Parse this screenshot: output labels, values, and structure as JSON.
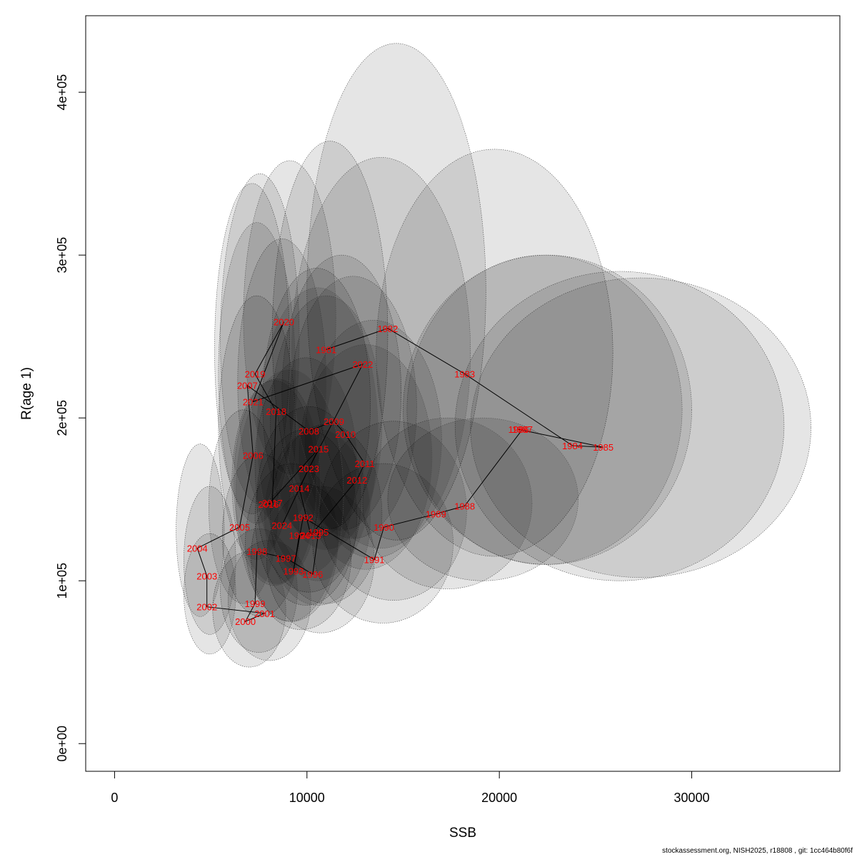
{
  "chart_data": {
    "type": "scatter",
    "xlabel": "SSB",
    "ylabel": "R(age 1)",
    "xlim": [
      -1500,
      37700
    ],
    "ylim": [
      -17000,
      447000
    ],
    "x_ticks": [
      {
        "value": 0,
        "label": "0"
      },
      {
        "value": 10000,
        "label": "10000"
      },
      {
        "value": 20000,
        "label": "20000"
      },
      {
        "value": 30000,
        "label": "30000"
      }
    ],
    "y_ticks": [
      {
        "value": 0,
        "label": "0e+00"
      },
      {
        "value": 100000,
        "label": "1e+05"
      },
      {
        "value": 200000,
        "label": "2e+05"
      },
      {
        "value": 300000,
        "label": "3e+05"
      },
      {
        "value": 400000,
        "label": "4e+05"
      }
    ],
    "points": [
      {
        "year": "1981",
        "ssb": 11000,
        "rec": 242000,
        "ssb_lo": 8200,
        "ssb_hi": 14200,
        "rec_lo": 132000,
        "rec_hi": 370000
      },
      {
        "year": "1982",
        "ssb": 14200,
        "rec": 255000,
        "ssb_lo": 10000,
        "ssb_hi": 19300,
        "rec_lo": 125000,
        "rec_hi": 430000
      },
      {
        "year": "1983",
        "ssb": 18200,
        "rec": 227000,
        "ssb_lo": 13600,
        "ssb_hi": 25900,
        "rec_lo": 115000,
        "rec_hi": 365000
      },
      {
        "year": "1984",
        "ssb": 23800,
        "rec": 183000,
        "ssb_lo": 17700,
        "ssb_hi": 34800,
        "rec_lo": 100000,
        "rec_hi": 290000
      },
      {
        "year": "1985",
        "ssb": 25400,
        "rec": 182000,
        "ssb_lo": 18500,
        "ssb_hi": 36200,
        "rec_lo": 102000,
        "rec_hi": 286000
      },
      {
        "year": "1986",
        "ssb": 21000,
        "rec": 193000,
        "ssb_lo": 15000,
        "ssb_hi": 30000,
        "rec_lo": 110000,
        "rec_hi": 300000
      },
      {
        "year": "1987",
        "ssb": 21200,
        "rec": 193000,
        "ssb_lo": 15200,
        "ssb_hi": 29500,
        "rec_lo": 110000,
        "rec_hi": 300000
      },
      {
        "year": "1988",
        "ssb": 18200,
        "rec": 146000,
        "ssb_lo": 14200,
        "ssb_hi": 24100,
        "rec_lo": 100000,
        "rec_hi": 200000
      },
      {
        "year": "1989",
        "ssb": 16700,
        "rec": 141000,
        "ssb_lo": 12900,
        "ssb_hi": 21700,
        "rec_lo": 95000,
        "rec_hi": 200000
      },
      {
        "year": "1990",
        "ssb": 14000,
        "rec": 133000,
        "ssb_lo": 10700,
        "ssb_hi": 18300,
        "rec_lo": 88000,
        "rec_hi": 198000
      },
      {
        "year": "1991",
        "ssb": 13500,
        "rec": 113000,
        "ssb_lo": 10300,
        "ssb_hi": 17600,
        "rec_lo": 74000,
        "rec_hi": 172000
      },
      {
        "year": "1992",
        "ssb": 9800,
        "rec": 139000,
        "ssb_lo": 7400,
        "ssb_hi": 12800,
        "rec_lo": 93000,
        "rec_hi": 207000
      },
      {
        "year": "1993",
        "ssb": 9300,
        "rec": 106000,
        "ssb_lo": 7100,
        "ssb_hi": 12300,
        "rec_lo": 70000,
        "rec_hi": 160000
      },
      {
        "year": "1994",
        "ssb": 9600,
        "rec": 128000,
        "ssb_lo": 7300,
        "ssb_hi": 12600,
        "rec_lo": 85000,
        "rec_hi": 193000
      },
      {
        "year": "1995",
        "ssb": 10600,
        "rec": 130000,
        "ssb_lo": 8100,
        "ssb_hi": 13900,
        "rec_lo": 86000,
        "rec_hi": 196000
      },
      {
        "year": "1996",
        "ssb": 10300,
        "rec": 104000,
        "ssb_lo": 7900,
        "ssb_hi": 13500,
        "rec_lo": 68000,
        "rec_hi": 158000
      },
      {
        "year": "1997",
        "ssb": 8900,
        "rec": 114000,
        "ssb_lo": 6800,
        "ssb_hi": 11600,
        "rec_lo": 75000,
        "rec_hi": 172000
      },
      {
        "year": "1998",
        "ssb": 7400,
        "rec": 118000,
        "ssb_lo": 5600,
        "ssb_hi": 9600,
        "rec_lo": 78000,
        "rec_hi": 178000
      },
      {
        "year": "1999",
        "ssb": 7300,
        "rec": 86000,
        "ssb_lo": 5500,
        "ssb_hi": 9500,
        "rec_lo": 56000,
        "rec_hi": 132000
      },
      {
        "year": "2000",
        "ssb": 6800,
        "rec": 75000,
        "ssb_lo": 5100,
        "ssb_hi": 8900,
        "rec_lo": 47000,
        "rec_hi": 118000
      },
      {
        "year": "2001",
        "ssb": 7800,
        "rec": 80000,
        "ssb_lo": 5900,
        "ssb_hi": 10200,
        "rec_lo": 51000,
        "rec_hi": 125000
      },
      {
        "year": "2002",
        "ssb": 4800,
        "rec": 84000,
        "ssb_lo": 3600,
        "ssb_hi": 6300,
        "rec_lo": 55000,
        "rec_hi": 129000
      },
      {
        "year": "2003",
        "ssb": 4800,
        "rec": 103000,
        "ssb_lo": 3600,
        "ssb_hi": 6300,
        "rec_lo": 67000,
        "rec_hi": 158000
      },
      {
        "year": "2004",
        "ssb": 4300,
        "rec": 120000,
        "ssb_lo": 3200,
        "ssb_hi": 5700,
        "rec_lo": 78000,
        "rec_hi": 184000
      },
      {
        "year": "2005",
        "ssb": 6500,
        "rec": 133000,
        "ssb_lo": 4900,
        "ssb_hi": 8500,
        "rec_lo": 86000,
        "rec_hi": 205000
      },
      {
        "year": "2006",
        "ssb": 7200,
        "rec": 177000,
        "ssb_lo": 5400,
        "ssb_hi": 9400,
        "rec_lo": 113000,
        "rec_hi": 275000
      },
      {
        "year": "2007",
        "ssb": 6900,
        "rec": 220000,
        "ssb_lo": 5200,
        "ssb_hi": 9100,
        "rec_lo": 141000,
        "rec_hi": 344000
      },
      {
        "year": "2008",
        "ssb": 10100,
        "rec": 192000,
        "ssb_lo": 7700,
        "ssb_hi": 13300,
        "rec_lo": 126000,
        "rec_hi": 292000
      },
      {
        "year": "2009",
        "ssb": 11400,
        "rec": 198000,
        "ssb_lo": 8700,
        "ssb_hi": 14900,
        "rec_lo": 131000,
        "rec_hi": 300000
      },
      {
        "year": "2010",
        "ssb": 12000,
        "rec": 190000,
        "ssb_lo": 9100,
        "ssb_hi": 15700,
        "rec_lo": 126000,
        "rec_hi": 287000
      },
      {
        "year": "2011",
        "ssb": 13000,
        "rec": 172000,
        "ssb_lo": 9900,
        "ssb_hi": 17000,
        "rec_lo": 114000,
        "rec_hi": 260000
      },
      {
        "year": "2012",
        "ssb": 12600,
        "rec": 162000,
        "ssb_lo": 9600,
        "ssb_hi": 16500,
        "rec_lo": 107000,
        "rec_hi": 245000
      },
      {
        "year": "2013",
        "ssb": 10200,
        "rec": 128000,
        "ssb_lo": 7800,
        "ssb_hi": 13300,
        "rec_lo": 85000,
        "rec_hi": 193000
      },
      {
        "year": "2014",
        "ssb": 9600,
        "rec": 157000,
        "ssb_lo": 7300,
        "ssb_hi": 12600,
        "rec_lo": 104000,
        "rec_hi": 237000
      },
      {
        "year": "2015",
        "ssb": 10600,
        "rec": 181000,
        "ssb_lo": 8100,
        "ssb_hi": 13900,
        "rec_lo": 119000,
        "rec_hi": 275000
      },
      {
        "year": "2016",
        "ssb": 8000,
        "rec": 147000,
        "ssb_lo": 6100,
        "ssb_hi": 10500,
        "rec_lo": 97000,
        "rec_hi": 223000
      },
      {
        "year": "2017",
        "ssb": 8200,
        "rec": 148000,
        "ssb_lo": 6200,
        "ssb_hi": 10700,
        "rec_lo": 98000,
        "rec_hi": 224000
      },
      {
        "year": "2018",
        "ssb": 8400,
        "rec": 204000,
        "ssb_lo": 6400,
        "ssb_hi": 11000,
        "rec_lo": 134000,
        "rec_hi": 310000
      },
      {
        "year": "2019",
        "ssb": 7300,
        "rec": 227000,
        "ssb_lo": 5500,
        "ssb_hi": 9600,
        "rec_lo": 147000,
        "rec_hi": 350000
      },
      {
        "year": "2020",
        "ssb": 8800,
        "rec": 259000,
        "ssb_lo": 6700,
        "ssb_hi": 11500,
        "rec_lo": 165000,
        "rec_hi": 358000
      },
      {
        "year": "2021",
        "ssb": 7200,
        "rec": 210000,
        "ssb_lo": 5400,
        "ssb_hi": 9400,
        "rec_lo": 135000,
        "rec_hi": 320000
      },
      {
        "year": "2022",
        "ssb": 12900,
        "rec": 233000,
        "ssb_lo": 9200,
        "ssb_hi": 18500,
        "rec_lo": 120000,
        "rec_hi": 360000
      },
      {
        "year": "2023",
        "ssb": 10100,
        "rec": 169000,
        "ssb_lo": 7400,
        "ssb_hi": 13700,
        "rec_lo": 100000,
        "rec_hi": 280000
      },
      {
        "year": "2024",
        "ssb": 8700,
        "rec": 134000,
        "ssb_lo": 6300,
        "ssb_hi": 11900,
        "rec_lo": 75000,
        "rec_hi": 230000
      }
    ]
  },
  "footer": "stockassessment.org, NISH2025, r18808 , git: 1cc464b80f6f"
}
